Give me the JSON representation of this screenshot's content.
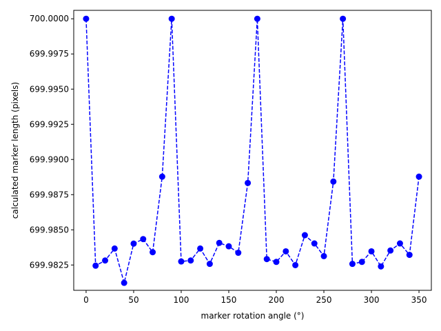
{
  "chart_data": {
    "type": "line",
    "title": "",
    "xlabel": "marker rotation angle (°)",
    "ylabel": "calculated marker length (pixels)",
    "xlim": [
      -13,
      363
    ],
    "ylim": [
      699.9807,
      700.0006
    ],
    "xticks": [
      0,
      50,
      100,
      150,
      200,
      250,
      300,
      350
    ],
    "yticks": [
      699.9825,
      699.985,
      699.9875,
      699.99,
      699.9925,
      699.995,
      699.9975,
      700.0
    ],
    "ytick_labels": [
      "699.9825",
      "699.9850",
      "699.9875",
      "699.9900",
      "699.9925",
      "699.9950",
      "699.9975",
      "700.0000"
    ],
    "grid": false,
    "line_style": "dashed",
    "marker": "circle",
    "color": "#0000ff",
    "series": [
      {
        "x": [
          0,
          10,
          20,
          30,
          40,
          50,
          60,
          70,
          80,
          90,
          100,
          110,
          120,
          130,
          140,
          150,
          160,
          170,
          180,
          190,
          200,
          210,
          220,
          230,
          240,
          250,
          260,
          270,
          280,
          290,
          300,
          310,
          320,
          330,
          340,
          350
        ],
        "y": [
          700.0,
          699.98245,
          699.98282,
          699.98367,
          699.98123,
          699.98402,
          699.98434,
          699.98341,
          699.98878,
          700.0,
          699.98275,
          699.98282,
          699.98367,
          699.98258,
          699.98407,
          699.98383,
          699.98337,
          699.98833,
          700.0,
          699.98292,
          699.98272,
          699.98347,
          699.98249,
          699.98462,
          699.98403,
          699.98313,
          699.98843,
          700.0,
          699.98258,
          699.98272,
          699.98347,
          699.9824,
          699.98353,
          699.98403,
          699.98322,
          699.98878
        ]
      }
    ]
  }
}
